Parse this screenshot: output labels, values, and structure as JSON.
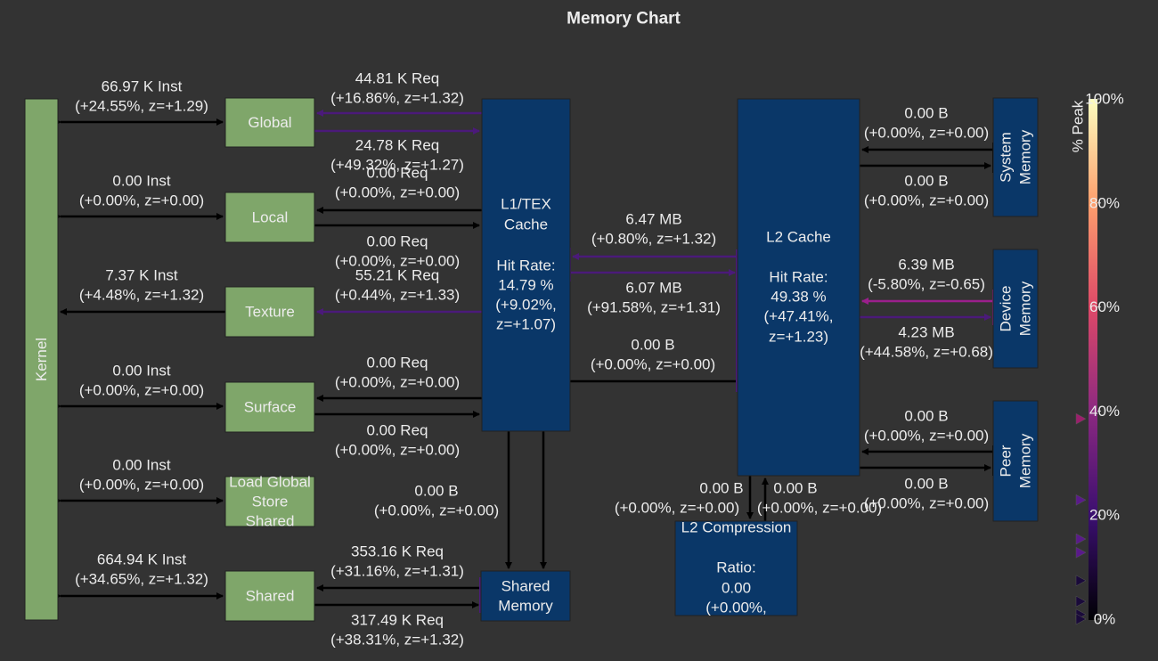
{
  "title": "Memory Chart",
  "nodes": [
    {
      "lines": [
        "Kernel"
      ]
    },
    {
      "lines": [
        "Global"
      ]
    },
    {
      "lines": [
        "Local"
      ]
    },
    {
      "lines": [
        "Texture"
      ]
    },
    {
      "lines": [
        "Surface"
      ]
    },
    {
      "lines": [
        "Load Global",
        "Store",
        "Shared"
      ]
    },
    {
      "lines": [
        "Shared"
      ]
    },
    {
      "lines": [
        "L1/TEX",
        "Cache",
        "Hit Rate:",
        "14.79 %",
        "(+9.02%,",
        "z=+1.07)"
      ]
    },
    {
      "lines": [
        "Shared",
        "Memory"
      ]
    },
    {
      "lines": [
        "L2 Cache",
        "Hit Rate:",
        "49.38 %",
        "(+47.41%,",
        "z=+1.23)"
      ]
    },
    {
      "lines": [
        "System",
        "Memory"
      ]
    },
    {
      "lines": [
        "Device",
        "Memory"
      ]
    },
    {
      "lines": [
        "Peer",
        "Memory"
      ]
    },
    {
      "lines": [
        "L2 Compression",
        "Ratio:",
        "0.00",
        "(+0.00%,"
      ]
    }
  ],
  "edges": [
    {
      "lines": [
        "66.97 K Inst",
        "(+24.55%, z=+1.29)"
      ]
    },
    {
      "lines": [
        "0.00 Inst",
        "(+0.00%, z=+0.00)"
      ]
    },
    {
      "lines": [
        "7.37 K Inst",
        "(+4.48%, z=+1.32)"
      ]
    },
    {
      "lines": [
        "0.00 Inst",
        "(+0.00%, z=+0.00)"
      ]
    },
    {
      "lines": [
        "0.00 Inst",
        "(+0.00%, z=+0.00)"
      ]
    },
    {
      "lines": [
        "664.94 K Inst",
        "(+34.65%, z=+1.32)"
      ]
    },
    {
      "lines": [
        "44.81 K Req",
        "(+16.86%, z=+1.32)"
      ]
    },
    {
      "lines": [
        "24.78 K Req",
        "(+49.32%, z=+1.27)"
      ]
    },
    {
      "lines": [
        "0.00 Req",
        "(+0.00%, z=+0.00)"
      ]
    },
    {
      "lines": [
        "0.00 Req",
        "(+0.00%, z=+0.00)"
      ]
    },
    {
      "lines": [
        "55.21 K Req",
        "(+0.44%, z=+1.33)"
      ]
    },
    {
      "lines": [
        "0.00 Req",
        "(+0.00%, z=+0.00)"
      ]
    },
    {
      "lines": [
        "0.00 Req",
        "(+0.00%, z=+0.00)"
      ]
    },
    {
      "lines": [
        "353.16 K Req",
        "(+31.16%, z=+1.31)"
      ]
    },
    {
      "lines": [
        "317.49 K Req",
        "(+38.31%, z=+1.32)"
      ]
    },
    {
      "lines": [
        "6.47 MB",
        "(+0.80%, z=+1.32)"
      ]
    },
    {
      "lines": [
        "6.07 MB",
        "(+91.58%, z=+1.31)"
      ]
    },
    {
      "lines": [
        "0.00 B",
        "(+0.00%, z=+0.00)"
      ]
    },
    {
      "lines": [
        "0.00 B",
        "(+0.00%, z=+0.00)"
      ]
    },
    {
      "lines": [
        "0.00 B",
        "(+0.00%, z=+0.00)"
      ]
    },
    {
      "lines": [
        "0.00 B",
        "(+0.00%, z=+0.00)"
      ]
    },
    {
      "lines": [
        "6.39 MB",
        "(-5.80%, z=-0.65)"
      ]
    },
    {
      "lines": [
        "4.23 MB",
        "(+44.58%, z=+0.68)"
      ]
    },
    {
      "lines": [
        "0.00 B",
        "(+0.00%, z=+0.00)"
      ]
    },
    {
      "lines": [
        "0.00 B",
        "(+0.00%, z=+0.00)"
      ]
    },
    {
      "lines": [
        "0.00 B",
        "(+0.00%, z=+0.00)"
      ]
    },
    {
      "lines": [
        "0.00 B",
        "(+0.00%, z=+0.00)"
      ]
    }
  ],
  "colorbar": {
    "label": "% Peak",
    "lim": [
      0,
      100
    ],
    "ticks": [
      {
        "value": 0,
        "label": "0%"
      },
      {
        "value": 20,
        "label": "20%"
      },
      {
        "value": 40,
        "label": "40%"
      },
      {
        "value": 60,
        "label": "60%"
      },
      {
        "value": 80,
        "label": "80%"
      },
      {
        "value": 100,
        "label": "100%"
      }
    ],
    "markers": [
      38.5,
      22.9,
      15.4,
      12.8,
      7.4,
      3.4,
      0.9,
      0
    ]
  }
}
